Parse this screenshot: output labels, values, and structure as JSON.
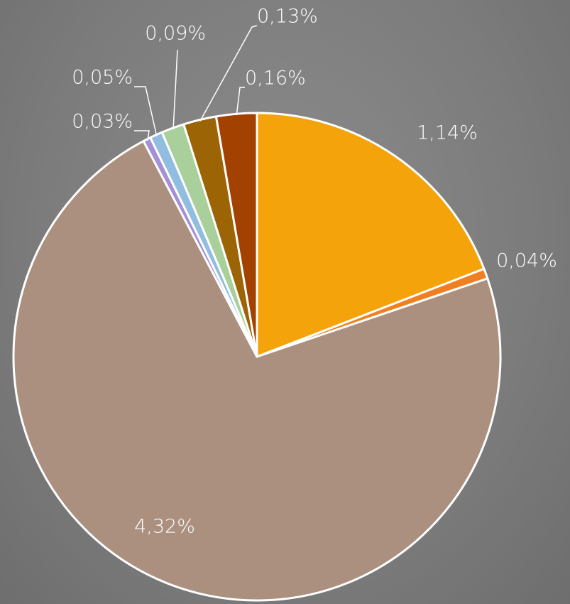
{
  "chart_data": {
    "type": "pie",
    "values": [
      1.14,
      0.04,
      4.32,
      0.03,
      0.05,
      0.09,
      0.13,
      0.16
    ],
    "value_labels": [
      "1,14%",
      "0,04%",
      "4,32%",
      "0,03%",
      "0,05%",
      "0,09%",
      "0,13%",
      "0,16%"
    ],
    "colors": [
      "#f4a30a",
      "#f07f1f",
      "#ab9080",
      "#a58fd6",
      "#90bde0",
      "#a9cf9a",
      "#9c6405",
      "#a34100"
    ]
  }
}
